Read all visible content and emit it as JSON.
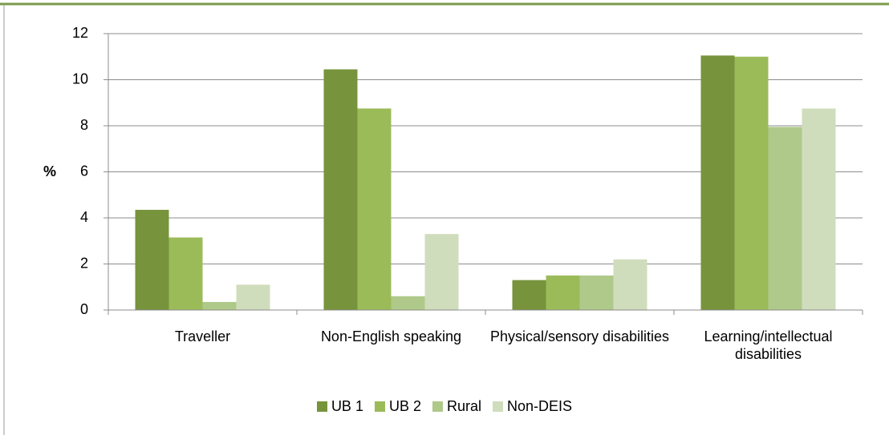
{
  "chart_data": {
    "type": "bar",
    "y_label": "%",
    "categories": [
      "Traveller",
      "Non-English speaking",
      "Physical/sensory disabilities",
      "Learning/intellectual disabilities"
    ],
    "series": [
      {
        "name": "UB 1",
        "color": "#77933c",
        "values": [
          4.35,
          10.45,
          1.3,
          11.05
        ]
      },
      {
        "name": "UB 2",
        "color": "#9bbb59",
        "values": [
          3.15,
          8.75,
          1.5,
          11.0
        ]
      },
      {
        "name": "Rural",
        "color": "#afc98a",
        "values": [
          0.35,
          0.6,
          1.5,
          7.95
        ]
      },
      {
        "name": "Non-DEIS",
        "color": "#d0ddbc",
        "values": [
          1.1,
          3.3,
          2.2,
          8.75
        ]
      }
    ],
    "ylim": [
      0,
      12
    ],
    "yticks": [
      0,
      2,
      4,
      6,
      8,
      10,
      12
    ],
    "grid": true,
    "legend": "bottom"
  }
}
